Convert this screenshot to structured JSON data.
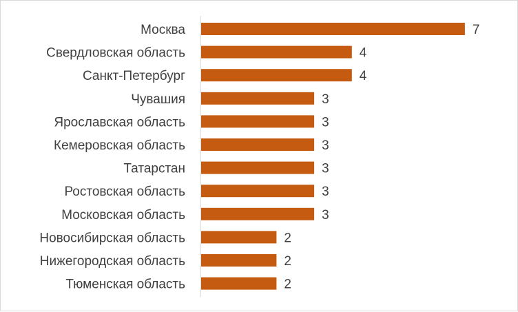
{
  "chart_data": {
    "type": "bar",
    "orientation": "horizontal",
    "categories": [
      "Москва",
      "Свердловская область",
      "Санкт-Петербург",
      "Чувашия",
      "Ярославская область",
      "Кемеровская область",
      "Татарстан",
      "Ростовская область",
      "Московская область",
      "Новосибирская область",
      "Нижегородская область",
      "Тюменская область"
    ],
    "values": [
      7,
      4,
      4,
      3,
      3,
      3,
      3,
      3,
      3,
      2,
      2,
      2
    ],
    "data_labels": [
      "7",
      "4",
      "4",
      "3",
      "3",
      "3",
      "3",
      "3",
      "3",
      "2",
      "2",
      "2"
    ],
    "title": "",
    "xlabel": "",
    "ylabel": "",
    "xlim": [
      0,
      7
    ],
    "grid": false,
    "legend": "none",
    "bar_color": "#C55A11"
  }
}
